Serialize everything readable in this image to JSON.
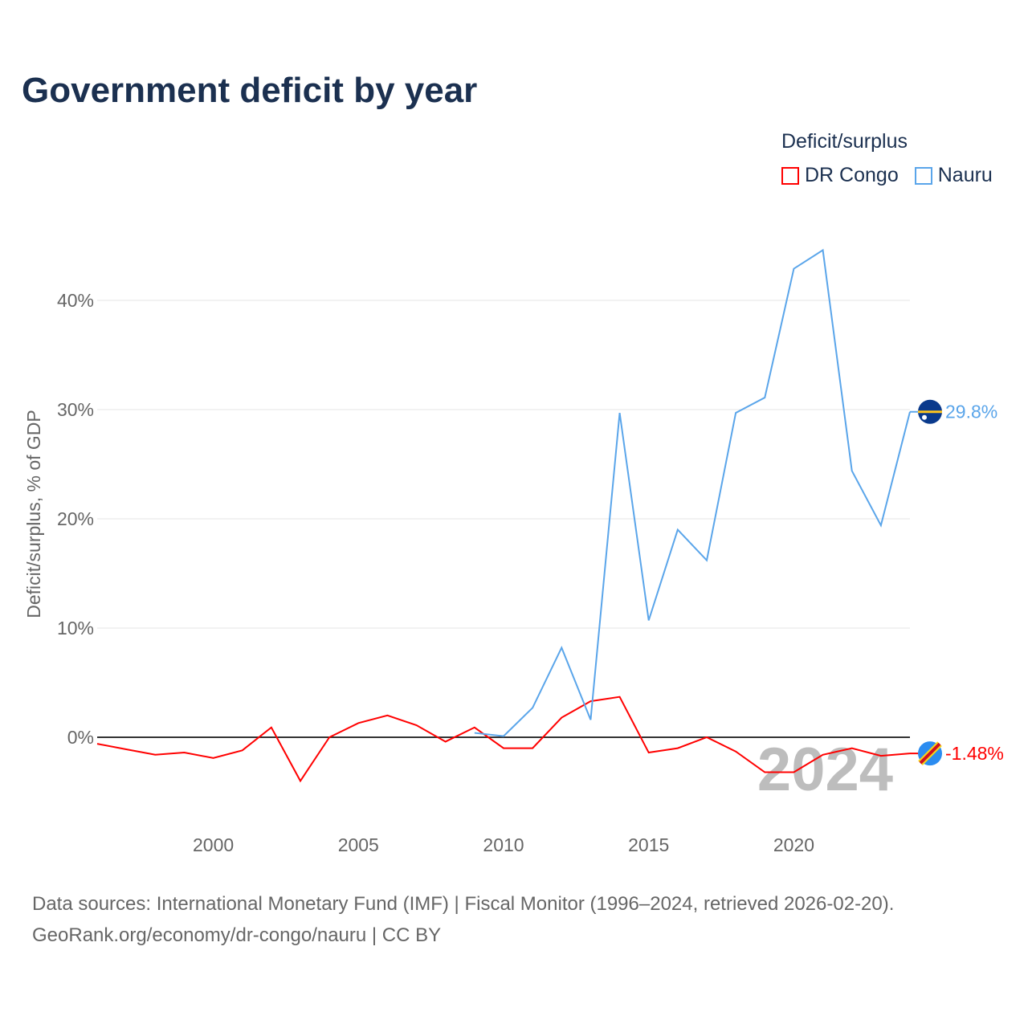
{
  "chart_data": {
    "type": "line",
    "title": "Government deficit by year",
    "ylabel": "Deficit/surplus, % of GDP",
    "xlabel": "",
    "xlim": [
      1996,
      2024
    ],
    "ylim": [
      -6,
      46
    ],
    "x_ticks": [
      2000,
      2005,
      2010,
      2015,
      2020
    ],
    "x_tick_labels": [
      "2000",
      "2005",
      "2010",
      "2015",
      "2020"
    ],
    "y_ticks": [
      0,
      10,
      20,
      30,
      40
    ],
    "y_tick_labels": [
      "0%",
      "10%",
      "20%",
      "30%",
      "40%"
    ],
    "grid": true,
    "legend_title": "Deficit/surplus",
    "legend_placement": "top-right",
    "year_watermark": "2024",
    "series": [
      {
        "name": "DR Congo",
        "color": "#ff0000",
        "end_label": "-1.48%",
        "x": [
          1996,
          1997,
          1998,
          1999,
          2000,
          2001,
          2002,
          2003,
          2004,
          2005,
          2006,
          2007,
          2008,
          2009,
          2010,
          2011,
          2012,
          2013,
          2014,
          2015,
          2016,
          2017,
          2018,
          2019,
          2020,
          2021,
          2022,
          2023,
          2024
        ],
        "values": [
          -0.6,
          -1.1,
          -1.6,
          -1.4,
          -1.9,
          -1.2,
          0.9,
          -4.0,
          0.0,
          1.3,
          2.0,
          1.1,
          -0.4,
          0.9,
          -1.0,
          -1.0,
          1.8,
          3.3,
          3.7,
          -1.4,
          -1.0,
          0.0,
          -1.3,
          -3.2,
          -3.2,
          -1.6,
          -1.0,
          -1.7,
          -1.48
        ]
      },
      {
        "name": "Nauru",
        "color": "#5aa5ea",
        "end_label": "29.8%",
        "x": [
          2009,
          2010,
          2011,
          2012,
          2013,
          2014,
          2015,
          2016,
          2017,
          2018,
          2019,
          2020,
          2021,
          2022,
          2023,
          2024
        ],
        "values": [
          0.4,
          0.1,
          2.7,
          8.2,
          1.6,
          29.7,
          10.7,
          19.0,
          16.2,
          29.7,
          31.1,
          42.9,
          44.6,
          24.4,
          19.4,
          29.8
        ]
      }
    ]
  },
  "footer": {
    "line1": "Data sources: International Monetary Fund (IMF) | Fiscal Monitor (1996–2024, retrieved 2026-02-20).",
    "line2": "GeoRank.org/economy/dr-congo/nauru | CC BY"
  }
}
